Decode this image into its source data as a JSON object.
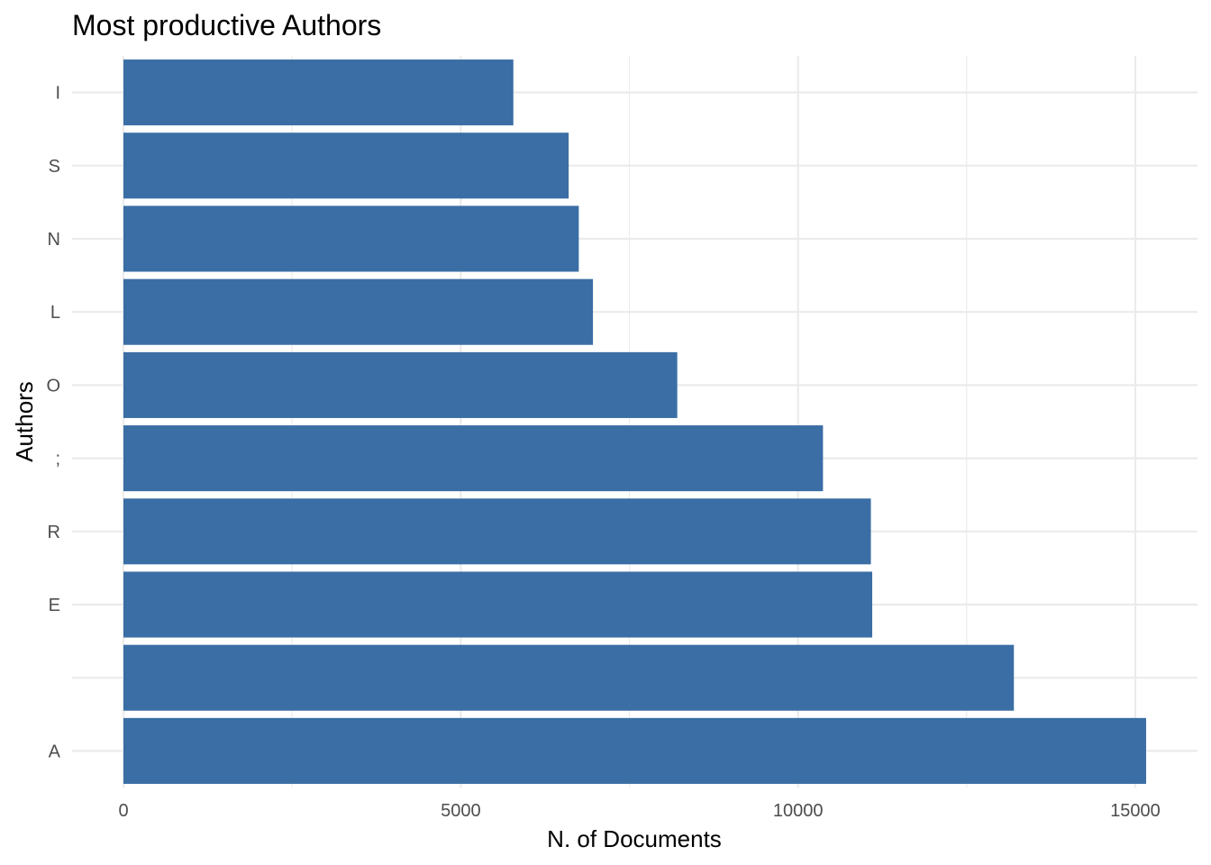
{
  "chart_data": {
    "type": "bar",
    "orientation": "horizontal",
    "title": "Most productive Authors",
    "xlabel": "N. of Documents",
    "ylabel": "Authors",
    "categories": [
      "A",
      "",
      "E",
      "R",
      ";",
      "O",
      "L",
      "N",
      "S",
      "I"
    ],
    "values": [
      15160,
      13200,
      11100,
      11080,
      10370,
      8210,
      6960,
      6750,
      6600,
      5780
    ],
    "xlim": [
      0,
      15900
    ],
    "xticks": [
      0,
      5000,
      10000,
      15000
    ],
    "xtick_labels": [
      "0",
      "5000",
      "10000",
      "15000"
    ],
    "bar_color": "#3A6EA5",
    "grid": true,
    "legend": "none"
  }
}
